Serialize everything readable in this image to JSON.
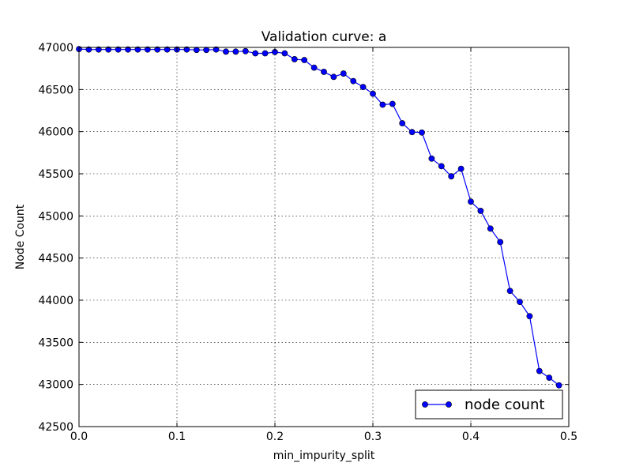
{
  "chart_data": {
    "type": "line",
    "title": "Validation curve: a",
    "xlabel": "min_impurity_split",
    "ylabel": "Node Count",
    "xlim": [
      0.0,
      0.5
    ],
    "ylim": [
      42500,
      47000
    ],
    "xticks": [
      "0.0",
      "0.1",
      "0.2",
      "0.3",
      "0.4",
      "0.5"
    ],
    "yticks": [
      "42500",
      "43000",
      "43500",
      "44000",
      "44500",
      "45000",
      "45500",
      "46000",
      "46500",
      "47000"
    ],
    "grid": true,
    "legend_position": "lower-right",
    "series": [
      {
        "name": "node count",
        "color": "#0000ff",
        "marker": "circle",
        "x": [
          0.0,
          0.01,
          0.02,
          0.03,
          0.04,
          0.05,
          0.06,
          0.07,
          0.08,
          0.09,
          0.1,
          0.11,
          0.12,
          0.13,
          0.14,
          0.15,
          0.16,
          0.17,
          0.18,
          0.19,
          0.2,
          0.21,
          0.22,
          0.23,
          0.24,
          0.25,
          0.26,
          0.27,
          0.28,
          0.29,
          0.3,
          0.31,
          0.32,
          0.33,
          0.34,
          0.35,
          0.36,
          0.37,
          0.38,
          0.39,
          0.4,
          0.41,
          0.42,
          0.43,
          0.44,
          0.45,
          0.46,
          0.47,
          0.48,
          0.49
        ],
        "y": [
          46980,
          46975,
          46975,
          46975,
          46975,
          46975,
          46975,
          46975,
          46975,
          46975,
          46975,
          46975,
          46970,
          46970,
          46975,
          46950,
          46950,
          46955,
          46930,
          46930,
          46945,
          46930,
          46860,
          46850,
          46760,
          46710,
          46650,
          46690,
          46600,
          46530,
          46450,
          46320,
          46330,
          46100,
          45995,
          45990,
          45680,
          45590,
          45470,
          45560,
          45170,
          45060,
          44850,
          44690,
          44110,
          43980,
          43810,
          43160,
          43080,
          42990
        ]
      }
    ]
  }
}
